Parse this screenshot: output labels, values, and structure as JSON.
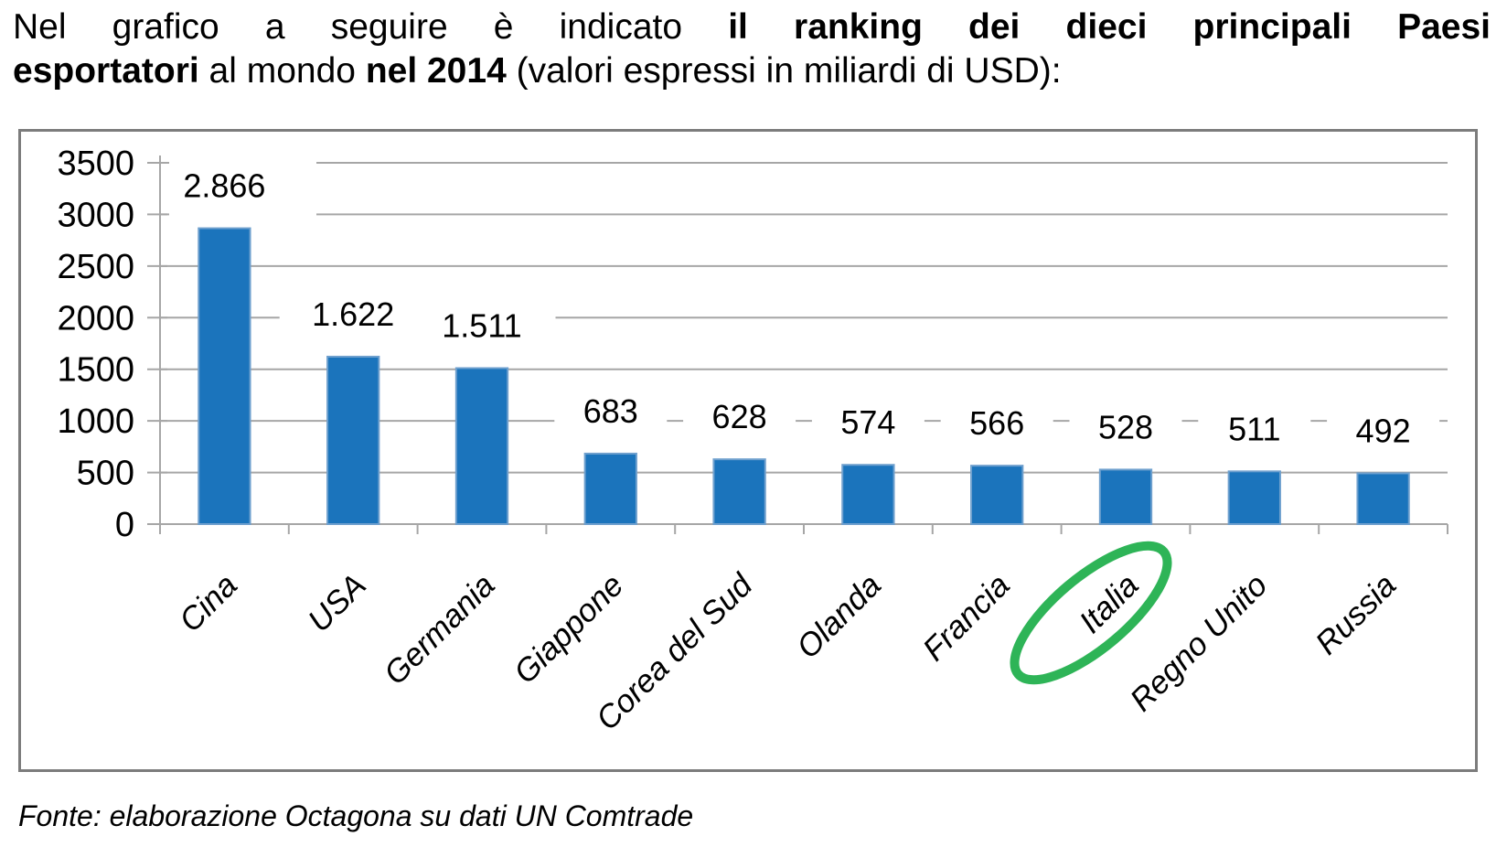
{
  "header": {
    "line1": [
      "Nel grafico a seguire è indicato ",
      "il ranking dei dieci principali Paesi"
    ],
    "line2": [
      "esportatori",
      " al mondo ",
      "nel 2014",
      " (valori espressi in miliardi di USD):"
    ]
  },
  "footer": {
    "text": "Fonte: elaborazione Octagona su dati UN Comtrade"
  },
  "chart_data": {
    "type": "bar",
    "title": "",
    "xlabel": "",
    "ylabel": "",
    "categories": [
      "Cina",
      "USA",
      "Germania",
      "Giappone",
      "Corea del Sud",
      "Olanda",
      "Francia",
      "Italia",
      "Regno Unito",
      "Russia"
    ],
    "values": [
      2866,
      1622,
      1511,
      683,
      628,
      574,
      566,
      528,
      511,
      492
    ],
    "value_labels": [
      "2.866",
      "1.622",
      "1.511",
      "683",
      "628",
      "574",
      "566",
      "528",
      "511",
      "492"
    ],
    "ylim": [
      0,
      3500
    ],
    "ytick_step": 500,
    "ytick_labels": [
      "0",
      "500",
      "1000",
      "1500",
      "2000",
      "2500",
      "3000",
      "3500"
    ],
    "grid": true,
    "legend": false,
    "bar_color": "#1B74BC",
    "bar_edge_color": "#6FA0CE",
    "grid_color": "#A6A6A6",
    "label_color": "#000000",
    "highlight": {
      "category": "Italia",
      "shape": "ellipse",
      "color": "#2EB457"
    }
  }
}
